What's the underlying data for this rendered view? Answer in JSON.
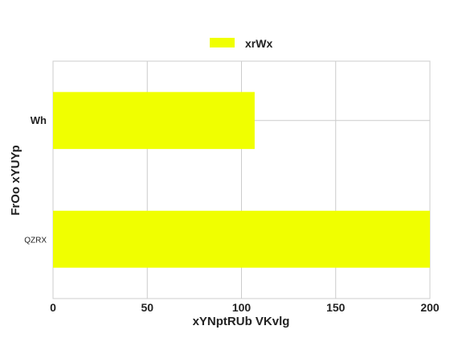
{
  "chart_data": {
    "type": "bar",
    "orientation": "horizontal",
    "title": "",
    "categories": [
      "Wh",
      "QZRX"
    ],
    "series": [
      {
        "name": "xrWx",
        "values": [
          107,
          200
        ],
        "color": "#f0ff00"
      }
    ],
    "xlabel": "xYNptRUb VKvlg",
    "ylabel": "FrOo xYUYp",
    "xlim": [
      0,
      200
    ],
    "xticks": [
      "0",
      "50",
      "100",
      "150",
      "200"
    ],
    "grid": true,
    "legend_position": "top-center"
  }
}
